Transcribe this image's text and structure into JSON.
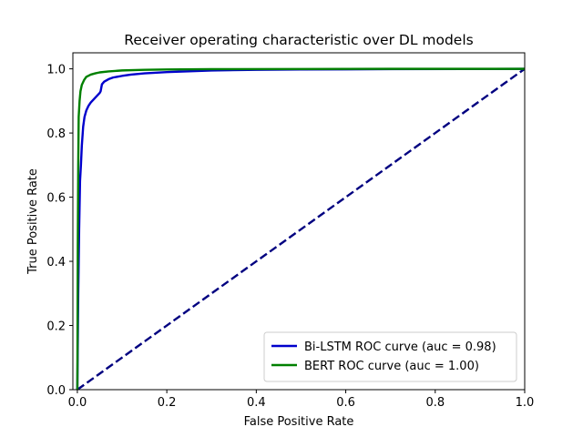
{
  "chart_data": {
    "type": "line",
    "title": "Receiver operating characteristic over DL models",
    "xlabel": "False Positive Rate",
    "ylabel": "True Positive Rate",
    "xlim": [
      -0.01,
      1.0
    ],
    "ylim": [
      0.0,
      1.05
    ],
    "xticks": [
      0.0,
      0.2,
      0.4,
      0.6,
      0.8,
      1.0
    ],
    "yticks": [
      0.0,
      0.2,
      0.4,
      0.6,
      0.8,
      1.0
    ],
    "xtick_labels": [
      "0.0",
      "0.2",
      "0.4",
      "0.6",
      "0.8",
      "1.0"
    ],
    "ytick_labels": [
      "0.0",
      "0.2",
      "0.4",
      "0.6",
      "0.8",
      "1.0"
    ],
    "grid": false,
    "legend_position": "lower-right",
    "series": [
      {
        "name": "Bi-LSTM ROC curve (auc = 0.98)",
        "color": "#0000cc",
        "style": "solid",
        "x": [
          0.0,
          0.002,
          0.004,
          0.006,
          0.008,
          0.01,
          0.013,
          0.016,
          0.02,
          0.025,
          0.03,
          0.04,
          0.05,
          0.052,
          0.055,
          0.06,
          0.07,
          0.08,
          0.1,
          0.12,
          0.15,
          0.2,
          0.3,
          0.4,
          0.5,
          0.7,
          1.0
        ],
        "y": [
          0.0,
          0.3,
          0.5,
          0.65,
          0.7,
          0.76,
          0.82,
          0.85,
          0.87,
          0.885,
          0.895,
          0.91,
          0.925,
          0.93,
          0.952,
          0.96,
          0.968,
          0.973,
          0.978,
          0.982,
          0.986,
          0.99,
          0.995,
          0.997,
          0.998,
          0.999,
          1.0
        ]
      },
      {
        "name": "BERT ROC curve (auc = 1.00)",
        "color": "#008000",
        "style": "solid",
        "x": [
          0.0,
          0.001,
          0.002,
          0.003,
          0.005,
          0.007,
          0.01,
          0.015,
          0.02,
          0.03,
          0.04,
          0.05,
          0.07,
          0.1,
          0.15,
          0.2,
          0.3,
          0.5,
          0.7,
          1.0
        ],
        "y": [
          0.0,
          0.45,
          0.7,
          0.85,
          0.9,
          0.93,
          0.95,
          0.965,
          0.975,
          0.982,
          0.986,
          0.989,
          0.992,
          0.995,
          0.997,
          0.998,
          0.999,
          0.9995,
          1.0,
          1.0
        ]
      },
      {
        "name": "",
        "color": "#000080",
        "style": "dashed",
        "x": [
          0.0,
          1.0
        ],
        "y": [
          0.0,
          1.0
        ]
      }
    ]
  }
}
